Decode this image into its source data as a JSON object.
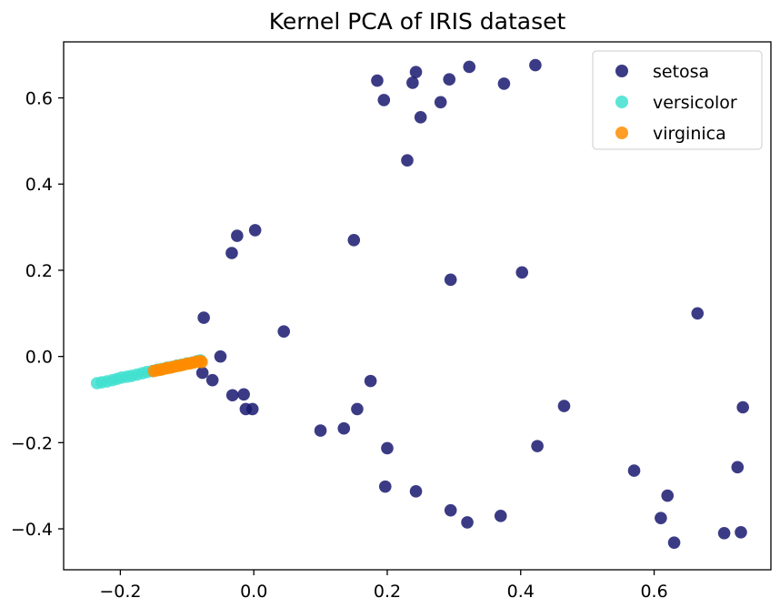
{
  "chart_data": {
    "type": "scatter",
    "title": "Kernel PCA of IRIS dataset",
    "xlabel": "",
    "ylabel": "",
    "xlim": [
      -0.285,
      0.775
    ],
    "ylim": [
      -0.495,
      0.73
    ],
    "xticks": [
      -0.2,
      0.0,
      0.2,
      0.4,
      0.6
    ],
    "xtick_labels": [
      "−0.2",
      "0.0",
      "0.2",
      "0.4",
      "0.6"
    ],
    "yticks": [
      -0.4,
      -0.2,
      0.0,
      0.2,
      0.4,
      0.6
    ],
    "ytick_labels": [
      "−0.4",
      "−0.2",
      "0.0",
      "0.2",
      "0.4",
      "0.6"
    ],
    "grid": false,
    "legend_position": "top-right",
    "series": [
      {
        "name": "setosa",
        "color": "#191970",
        "points": [
          [
            -0.075,
            0.09
          ],
          [
            -0.077,
            -0.038
          ],
          [
            -0.062,
            -0.055
          ],
          [
            -0.05,
            0.0
          ],
          [
            -0.033,
            0.24
          ],
          [
            -0.025,
            0.28
          ],
          [
            0.002,
            0.293
          ],
          [
            -0.032,
            -0.09
          ],
          [
            -0.015,
            -0.088
          ],
          [
            -0.012,
            -0.122
          ],
          [
            -0.002,
            -0.122
          ],
          [
            0.045,
            0.058
          ],
          [
            0.1,
            -0.172
          ],
          [
            0.135,
            -0.167
          ],
          [
            0.15,
            0.27
          ],
          [
            0.155,
            -0.122
          ],
          [
            0.175,
            -0.057
          ],
          [
            0.185,
            0.64
          ],
          [
            0.195,
            0.595
          ],
          [
            0.197,
            -0.302
          ],
          [
            0.2,
            -0.213
          ],
          [
            0.23,
            0.455
          ],
          [
            0.238,
            0.635
          ],
          [
            0.243,
            0.66
          ],
          [
            0.243,
            -0.313
          ],
          [
            0.25,
            0.555
          ],
          [
            0.28,
            0.59
          ],
          [
            0.293,
            0.643
          ],
          [
            0.295,
            0.178
          ],
          [
            0.295,
            -0.357
          ],
          [
            0.32,
            -0.385
          ],
          [
            0.323,
            0.672
          ],
          [
            0.37,
            -0.37
          ],
          [
            0.375,
            0.633
          ],
          [
            0.402,
            0.195
          ],
          [
            0.422,
            0.676
          ],
          [
            0.425,
            -0.208
          ],
          [
            0.465,
            -0.115
          ],
          [
            0.57,
            -0.265
          ],
          [
            0.61,
            -0.375
          ],
          [
            0.62,
            -0.323
          ],
          [
            0.63,
            -0.432
          ],
          [
            0.665,
            0.1
          ],
          [
            0.705,
            -0.41
          ],
          [
            0.725,
            -0.257
          ],
          [
            0.73,
            -0.408
          ],
          [
            0.733,
            -0.118
          ]
        ]
      },
      {
        "name": "versicolor",
        "color": "#40e0d0",
        "points": [
          [
            -0.235,
            -0.062
          ],
          [
            -0.228,
            -0.06
          ],
          [
            -0.22,
            -0.058
          ],
          [
            -0.212,
            -0.055
          ],
          [
            -0.205,
            -0.052
          ],
          [
            -0.198,
            -0.049
          ],
          [
            -0.19,
            -0.047
          ],
          [
            -0.183,
            -0.045
          ],
          [
            -0.175,
            -0.042
          ],
          [
            -0.167,
            -0.039
          ],
          [
            -0.16,
            -0.036
          ],
          [
            -0.152,
            -0.034
          ],
          [
            -0.145,
            -0.031
          ],
          [
            -0.138,
            -0.029
          ],
          [
            -0.13,
            -0.026
          ],
          [
            -0.122,
            -0.024
          ],
          [
            -0.115,
            -0.021
          ],
          [
            -0.108,
            -0.019
          ],
          [
            -0.1,
            -0.016
          ],
          [
            -0.092,
            -0.014
          ],
          [
            -0.085,
            -0.011
          ],
          [
            -0.08,
            -0.009
          ]
        ]
      },
      {
        "name": "virginica",
        "color": "#ff8c00",
        "points": [
          [
            -0.15,
            -0.034
          ],
          [
            -0.145,
            -0.032
          ],
          [
            -0.14,
            -0.031
          ],
          [
            -0.135,
            -0.029
          ],
          [
            -0.13,
            -0.027
          ],
          [
            -0.125,
            -0.026
          ],
          [
            -0.12,
            -0.024
          ],
          [
            -0.115,
            -0.022
          ],
          [
            -0.11,
            -0.021
          ],
          [
            -0.105,
            -0.019
          ],
          [
            -0.1,
            -0.017
          ],
          [
            -0.095,
            -0.016
          ],
          [
            -0.09,
            -0.014
          ],
          [
            -0.085,
            -0.012
          ],
          [
            -0.08,
            -0.011
          ],
          [
            -0.078,
            -0.013
          ]
        ]
      }
    ]
  }
}
